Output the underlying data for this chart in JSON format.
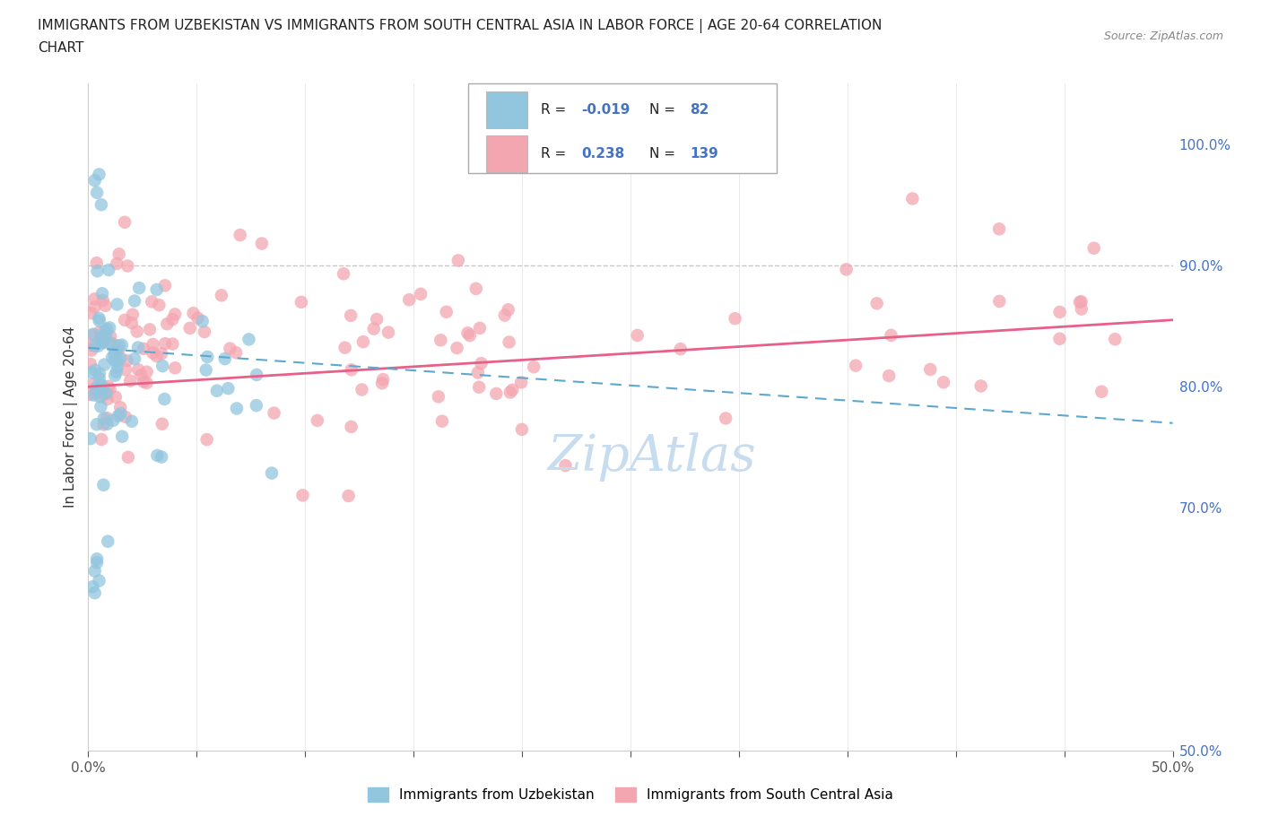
{
  "title_line1": "IMMIGRANTS FROM UZBEKISTAN VS IMMIGRANTS FROM SOUTH CENTRAL ASIA IN LABOR FORCE | AGE 20-64 CORRELATION",
  "title_line2": "CHART",
  "source_text": "Source: ZipAtlas.com",
  "ylabel_label": "In Labor Force | Age 20-64",
  "right_yticks": [
    0.5,
    0.7,
    0.8,
    0.9,
    1.0
  ],
  "right_ytick_labels": [
    "50.0%",
    "70.0%",
    "80.0%",
    "90.0%",
    "100.0%"
  ],
  "color_uzbekistan": "#92C5DE",
  "color_sca": "#F4A6B0",
  "color_uzbekistan_line": "#5DA8D0",
  "color_sca_line": "#E8608A",
  "xmin": 0.0,
  "xmax": 0.5,
  "ymin": 0.5,
  "ymax": 1.05,
  "hline_90": 0.9,
  "watermark_text": "ZipAtlas",
  "watermark_color": "#c8dcf0",
  "legend_r1_label": "R =",
  "legend_r1_val": "-0.019",
  "legend_n1_label": "N =",
  "legend_n1_val": "82",
  "legend_r2_label": "R =",
  "legend_r2_val": "0.238",
  "legend_n2_label": "N =",
  "legend_n2_val": "139",
  "uzb_trend_x0": 0.0,
  "uzb_trend_x1": 0.5,
  "uzb_trend_y0": 0.832,
  "uzb_trend_y1": 0.77,
  "sca_trend_x0": 0.0,
  "sca_trend_x1": 0.5,
  "sca_trend_y0": 0.8,
  "sca_trend_y1": 0.855
}
